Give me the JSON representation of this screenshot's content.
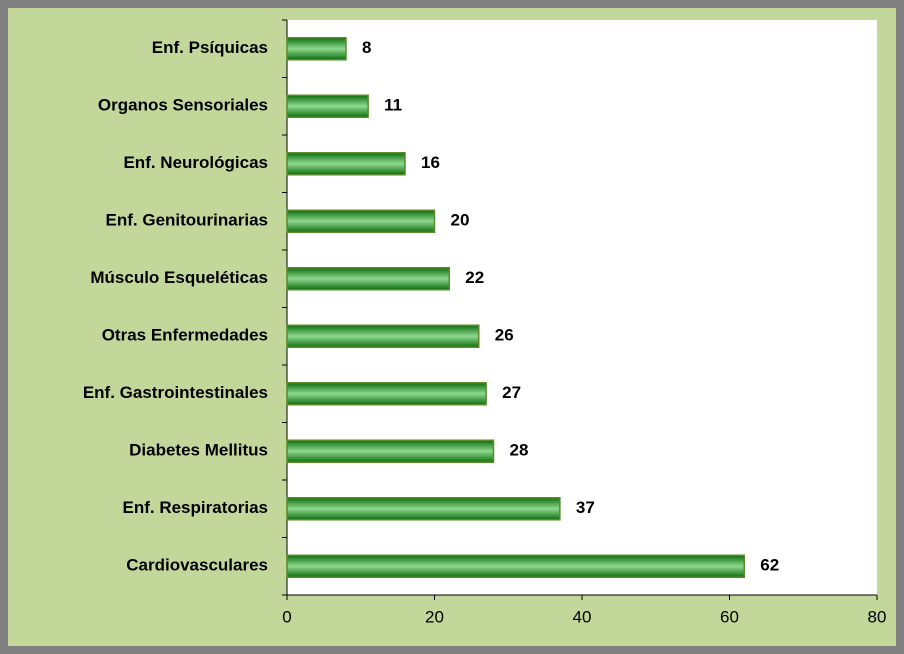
{
  "chart_data": {
    "type": "bar",
    "orientation": "horizontal",
    "categories": [
      "Enf.  Psíquicas",
      "Organos Sensoriales",
      "Enf. Neurológicas",
      "Enf. Genitourinarias",
      "Músculo Esqueléticas",
      "Otras Enfermedades",
      "Enf. Gastrointestinales",
      "Diabetes Mellitus",
      "Enf. Respiratorias",
      "Cardiovasculares"
    ],
    "values": [
      8,
      11,
      16,
      20,
      22,
      26,
      27,
      28,
      37,
      62
    ],
    "color": "#1e8c1e",
    "xlim": [
      0,
      80
    ],
    "xticks": [
      0,
      20,
      40,
      60,
      80
    ],
    "grid": false
  }
}
